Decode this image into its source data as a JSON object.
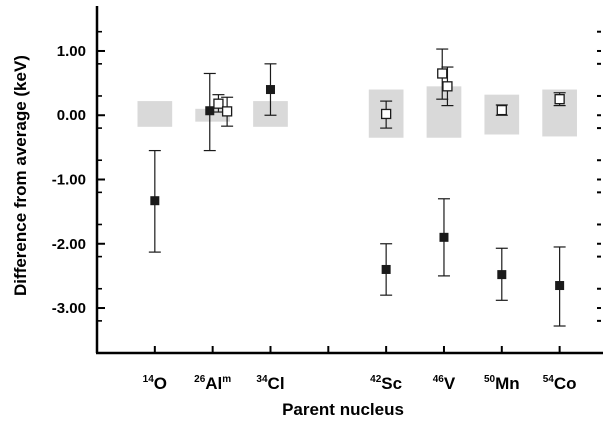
{
  "chart_data": {
    "type": "scatter",
    "xlabel": "Parent nucleus",
    "ylabel": "Difference from average (keV)",
    "ylim": [
      -3.7,
      1.7
    ],
    "y_ticks": [
      {
        "value": 1.0,
        "label": "1.00"
      },
      {
        "value": 0.0,
        "label": "0.00"
      },
      {
        "value": -1.0,
        "label": "-1.00"
      },
      {
        "value": -2.0,
        "label": "-2.00"
      },
      {
        "value": -3.0,
        "label": "-3.00"
      }
    ],
    "categories": [
      {
        "key": "O14",
        "mass": "14",
        "element": "O",
        "suffix": "",
        "x": 1.0
      },
      {
        "key": "Al26m",
        "mass": "26",
        "element": "Al",
        "suffix": "m",
        "x": 2.0
      },
      {
        "key": "Cl34",
        "mass": "34",
        "element": "Cl",
        "suffix": "",
        "x": 3.0
      },
      {
        "key": "Sc42",
        "mass": "42",
        "element": "Sc",
        "suffix": "",
        "x": 5.0
      },
      {
        "key": "V46",
        "mass": "46",
        "element": "V",
        "suffix": "",
        "x": 6.0
      },
      {
        "key": "Mn50",
        "mass": "50",
        "element": "Mn",
        "suffix": "",
        "x": 7.0
      },
      {
        "key": "Co54",
        "mass": "54",
        "element": "Co",
        "suffix": "",
        "x": 8.0
      }
    ],
    "bands": [
      {
        "category": "O14",
        "low": -0.18,
        "high": 0.22
      },
      {
        "category": "Al26m",
        "low": -0.1,
        "high": 0.1
      },
      {
        "category": "Cl34",
        "low": -0.18,
        "high": 0.22
      },
      {
        "category": "Sc42",
        "low": -0.35,
        "high": 0.4
      },
      {
        "category": "V46",
        "low": -0.35,
        "high": 0.45
      },
      {
        "category": "Mn50",
        "low": -0.3,
        "high": 0.32
      },
      {
        "category": "Co54",
        "low": -0.33,
        "high": 0.4
      }
    ],
    "series": [
      {
        "marker": "filled-square",
        "color": "#1a1a1a",
        "points": [
          {
            "x": 1.0,
            "y": -1.33,
            "err_low": -2.13,
            "err_high": -0.55
          },
          {
            "x": 1.95,
            "y": 0.07,
            "err_low": -0.55,
            "err_high": 0.65
          },
          {
            "x": 3.0,
            "y": 0.4,
            "err_low": 0.0,
            "err_high": 0.8
          },
          {
            "x": 5.0,
            "y": -2.4,
            "err_low": -2.8,
            "err_high": -2.0
          },
          {
            "x": 6.0,
            "y": -1.9,
            "err_low": -2.5,
            "err_high": -1.3
          },
          {
            "x": 7.0,
            "y": -2.48,
            "err_low": -2.88,
            "err_high": -2.07
          },
          {
            "x": 8.0,
            "y": -2.65,
            "err_low": -3.28,
            "err_high": -2.05
          }
        ]
      },
      {
        "marker": "open-square",
        "color": "#1a1a1a",
        "points": [
          {
            "x": 2.1,
            "y": 0.18,
            "err_low": 0.05,
            "err_high": 0.32
          },
          {
            "x": 2.25,
            "y": 0.06,
            "err_low": -0.17,
            "err_high": 0.28
          },
          {
            "x": 5.0,
            "y": 0.02,
            "err_low": -0.2,
            "err_high": 0.22
          },
          {
            "x": 5.97,
            "y": 0.65,
            "err_low": 0.25,
            "err_high": 1.03
          },
          {
            "x": 6.06,
            "y": 0.45,
            "err_low": 0.15,
            "err_high": 0.75
          },
          {
            "x": 7.0,
            "y": 0.08,
            "err_low": 0.0,
            "err_high": 0.16
          },
          {
            "x": 8.0,
            "y": 0.25,
            "err_low": 0.15,
            "err_high": 0.35
          }
        ]
      }
    ],
    "band_color": "#d9d9d9",
    "grid": false
  }
}
